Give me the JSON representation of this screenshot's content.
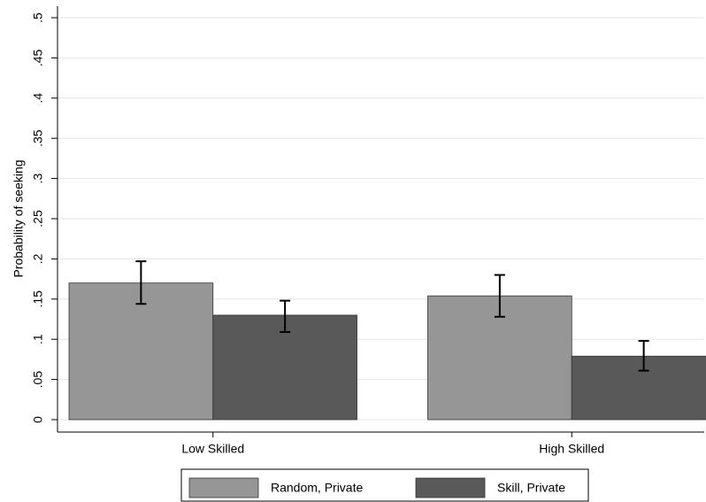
{
  "chart_data": {
    "type": "bar",
    "y_label": "Probability of seeking",
    "categories": [
      "Low Skilled",
      "High Skilled"
    ],
    "series": [
      {
        "name": "Random, Private",
        "color": "#969696",
        "values": [
          0.17,
          0.154
        ],
        "ci_low": [
          0.144,
          0.128
        ],
        "ci_high": [
          0.197,
          0.18
        ]
      },
      {
        "name": "Skill, Private",
        "color": "#595959",
        "values": [
          0.13,
          0.079
        ],
        "ci_low": [
          0.109,
          0.061
        ],
        "ci_high": [
          0.148,
          0.098
        ]
      }
    ],
    "ylim": [
      0,
      0.5
    ],
    "yticks": [
      0,
      {
        "value": 0.05,
        "label": ".05"
      },
      {
        "value": 0.1,
        "label": ".1"
      },
      {
        "value": 0.15,
        "label": ".15"
      },
      {
        "value": 0.2,
        "label": ".2"
      },
      {
        "value": 0.25,
        "label": ".25"
      },
      {
        "value": 0.3,
        "label": ".3"
      },
      {
        "value": 0.35,
        "label": ".35"
      },
      {
        "value": 0.4,
        "label": ".4"
      },
      {
        "value": 0.45,
        "label": ".45"
      },
      {
        "value": 0.5,
        "label": ".5"
      }
    ],
    "grid": true
  }
}
